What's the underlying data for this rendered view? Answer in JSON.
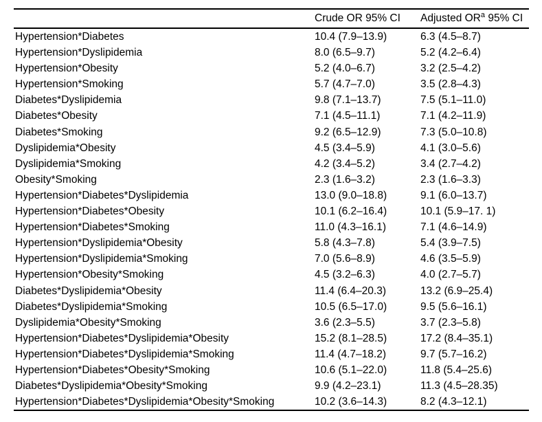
{
  "table": {
    "header": {
      "label_col": "",
      "crude_col": "Crude OR 95% CI",
      "adjusted_prefix": "Adjusted OR",
      "adjusted_sup": "a",
      "adjusted_suffix": " 95% CI"
    },
    "rows": [
      {
        "label": "Hypertension*Diabetes",
        "crude": "10.4 (7.9–13.9)",
        "adjusted": "6.3 (4.5–8.7)"
      },
      {
        "label": "Hypertension*Dyslipidemia",
        "crude": "8.0 (6.5–9.7)",
        "adjusted": "5.2 (4.2–6.4)"
      },
      {
        "label": "Hypertension*Obesity",
        "crude": "5.2 (4.0–6.7)",
        "adjusted": "3.2 (2.5–4.2)"
      },
      {
        "label": "Hypertension*Smoking",
        "crude": "5.7 (4.7–7.0)",
        "adjusted": "3.5 (2.8–4.3)"
      },
      {
        "label": "Diabetes*Dyslipidemia",
        "crude": "9.8 (7.1–13.7)",
        "adjusted": "7.5 (5.1–11.0)"
      },
      {
        "label": "Diabetes*Obesity",
        "crude": "7.1 (4.5–11.1)",
        "adjusted": "7.1 (4.2–11.9)"
      },
      {
        "label": "Diabetes*Smoking",
        "crude": "9.2 (6.5–12.9)",
        "adjusted": "7.3 (5.0–10.8)"
      },
      {
        "label": "Dyslipidemia*Obesity",
        "crude": "4.5 (3.4–5.9)",
        "adjusted": "4.1 (3.0–5.6)"
      },
      {
        "label": "Dyslipidemia*Smoking",
        "crude": "4.2 (3.4–5.2)",
        "adjusted": "3.4 (2.7–4.2)"
      },
      {
        "label": "Obesity*Smoking",
        "crude": "2.3 (1.6–3.2)",
        "adjusted": "2.3 (1.6–3.3)"
      },
      {
        "label": "Hypertension*Diabetes*Dyslipidemia",
        "crude": "13.0 (9.0–18.8)",
        "adjusted": "9.1 (6.0–13.7)"
      },
      {
        "label": "Hypertension*Diabetes*Obesity",
        "crude": "10.1 (6.2–16.4)",
        "adjusted": "10.1 (5.9–17. 1)"
      },
      {
        "label": "Hypertension*Diabetes*Smoking",
        "crude": "11.0 (4.3–16.1)",
        "adjusted": "7.1 (4.6–14.9)"
      },
      {
        "label": "Hypertension*Dyslipidemia*Obesity",
        "crude": "5.8 (4.3–7.8)",
        "adjusted": "5.4 (3.9–7.5)"
      },
      {
        "label": "Hypertension*Dyslipidemia*Smoking",
        "crude": "7.0 (5.6–8.9)",
        "adjusted": "4.6 (3.5–5.9)"
      },
      {
        "label": "Hypertension*Obesity*Smoking",
        "crude": "4.5 (3.2–6.3)",
        "adjusted": "4.0 (2.7–5.7)"
      },
      {
        "label": "Diabetes*Dyslipidemia*Obesity",
        "crude": "11.4 (6.4–20.3)",
        "adjusted": "13.2 (6.9–25.4)"
      },
      {
        "label": "Diabetes*Dyslipidemia*Smoking",
        "crude": "10.5 (6.5–17.0)",
        "adjusted": "9.5 (5.6–16.1)"
      },
      {
        "label": "Dyslipidemia*Obesity*Smoking",
        "crude": "3.6 (2.3–5.5)",
        "adjusted": "3.7 (2.3–5.8)"
      },
      {
        "label": "Hypertension*Diabetes*Dyslipidemia*Obesity",
        "crude": "15.2 (8.1–28.5)",
        "adjusted": "17.2 (8.4–35.1)"
      },
      {
        "label": "Hypertension*Diabetes*Dyslipidemia*Smoking",
        "crude": "11.4 (4.7–18.2)",
        "adjusted": "9.7 (5.7–16.2)"
      },
      {
        "label": "Hypertension*Diabetes*Obesity*Smoking",
        "crude": "10.6 (5.1–22.0)",
        "adjusted": "11.8 (5.4–25.6)"
      },
      {
        "label": "Diabetes*Dyslipidemia*Obesity*Smoking",
        "crude": "9.9 (4.2–23.1)",
        "adjusted": "11.3 (4.5–28.35)"
      },
      {
        "label": "Hypertension*Diabetes*Dyslipidemia*Obesity*Smoking",
        "crude": "10.2 (3.6–14.3)",
        "adjusted": "8.2 (4.3–12.1)"
      }
    ],
    "colors": {
      "text": "#000000",
      "background": "#ffffff",
      "rule": "#000000"
    }
  }
}
